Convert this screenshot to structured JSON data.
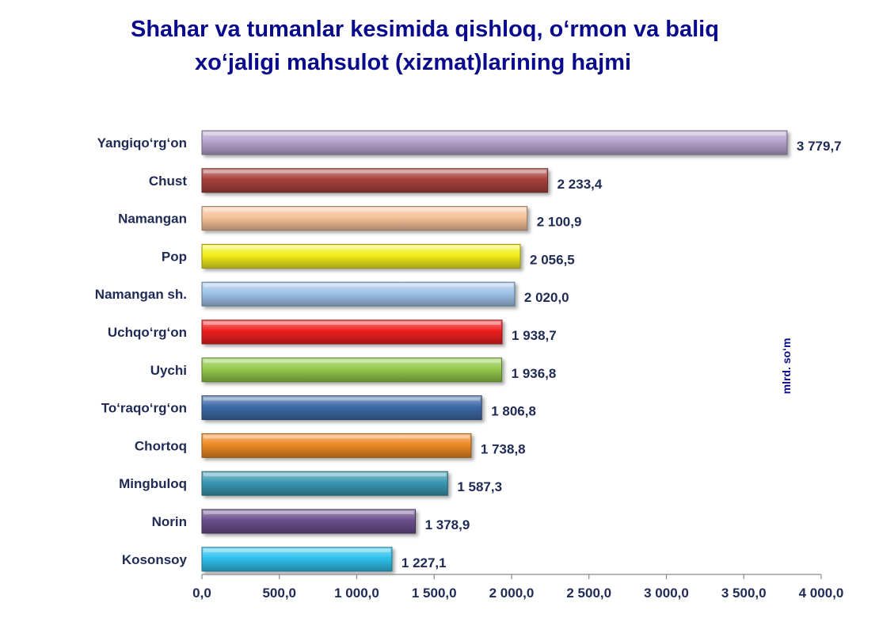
{
  "title_line_1": "Shahar va tumanlar kesimida qishloq, o‘rmon va baliq",
  "title_line_2": "xo‘jaligi mahsulot (xizmat)larining hajmi",
  "unit_label": "mlrd. so‘m",
  "chart_data": {
    "type": "bar",
    "orientation": "horizontal",
    "title": "Shahar va tumanlar kesimida qishloq, o‘rmon va baliq xo‘jaligi mahsulot (xizmat)larining hajmi",
    "xlabel": "",
    "ylabel": "",
    "unit": "mlrd. so‘m",
    "xlim": [
      0,
      4000
    ],
    "grid": false,
    "legend": "none",
    "categories": [
      "Yangiqo‘rg‘on",
      "Chust",
      "Namangan",
      "Pop",
      "Namangan sh.",
      "Uchqo‘rg‘on",
      "Uychi",
      "To‘raqo‘rg‘on",
      "Chortoq",
      "Mingbuloq",
      "Norin",
      "Kosonsoy"
    ],
    "values": [
      3779.7,
      2233.4,
      2100.9,
      2056.5,
      2020.0,
      1938.7,
      1936.8,
      1806.8,
      1738.8,
      1587.3,
      1378.9,
      1227.1
    ],
    "value_labels": [
      "3 779,7",
      "2 233,4",
      "2 100,9",
      "2 056,5",
      "2 020,0",
      "1 938,7",
      "1 936,8",
      "1 806,8",
      "1 738,8",
      "1 587,3",
      "1 378,9",
      "1 227,1"
    ],
    "bar_colors": [
      "#b7a3cd",
      "#a8413e",
      "#f5c29a",
      "#f2ee1c",
      "#9fc3ea",
      "#ee1f1f",
      "#93c94c",
      "#3e6aa7",
      "#ee8a26",
      "#3a98b3",
      "#6a4f8d",
      "#2fc1ec"
    ],
    "x_ticks": [
      0,
      500,
      1000,
      1500,
      2000,
      2500,
      3000,
      3500,
      4000
    ],
    "x_tick_labels": [
      "0,0",
      "500,0",
      "1 000,0",
      "1 500,0",
      "2 000,0",
      "2 500,0",
      "3 000,0",
      "3 500,0",
      "4 000,0"
    ]
  }
}
